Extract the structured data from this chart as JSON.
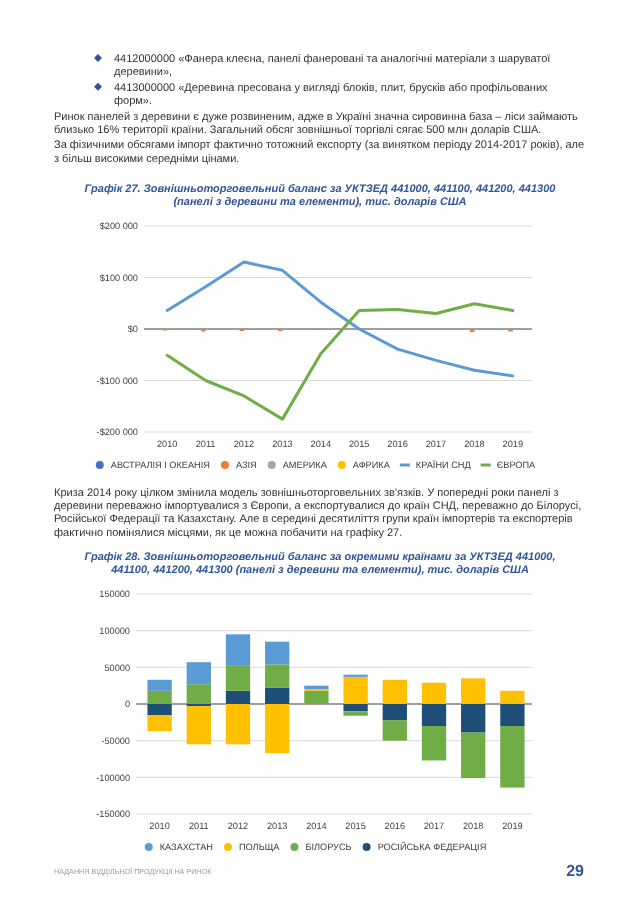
{
  "chart_data": [
    {
      "type": "line",
      "title": "Графік 27.  Зовнішньоторговельний баланс за УКТЗЕД 441000, 441100, 441200, 441300 (панелі з деревини та елементи), тис. доларів США",
      "annotations": [
        "4412000000 «Фанера клеєна, панелі фанеровані та аналогічні матеріали з шаруватої деревини»,",
        "4413000000 «Деревина пресована у вигляді блоків, плит, брусків або профільованих форм».",
        "Ринок панелей з деревини є дуже розвиненим, адже в Україні значна сировинна база – ліси займають близько 16% території країни. Загальний обсяг зовнішньої торгівлі сягає 500 млн доларів США.",
        "За фізичними обсягами імпорт фактично тотожний експорту (за винятком періоду 2014-2017 років), але з більш високими середніми цінами."
      ],
      "categories": [
        "2010",
        "2011",
        "2012",
        "2013",
        "2014",
        "2015",
        "2016",
        "2017",
        "2018",
        "2019"
      ],
      "series": [
        {
          "name": "АВСТРАЛІЯ І ОКЕАНІЯ",
          "type": "bar",
          "color": "#4472c4",
          "values": [
            0,
            0,
            0,
            0,
            0,
            0,
            0,
            0,
            0,
            0
          ]
        },
        {
          "name": "АЗІЯ",
          "type": "bar",
          "color": "#ed7d31",
          "values": [
            -3000,
            -5000,
            -4000,
            -4000,
            -2000,
            0,
            0,
            0,
            -6000,
            -5000
          ]
        },
        {
          "name": "АМЕРИКА",
          "type": "bar",
          "color": "#a5a5a5",
          "values": [
            0,
            0,
            0,
            0,
            0,
            0,
            0,
            0,
            0,
            0
          ]
        },
        {
          "name": "АФРИКА",
          "type": "bar",
          "color": "#ffc000",
          "values": [
            0,
            0,
            0,
            0,
            0,
            0,
            0,
            0,
            0,
            0
          ]
        },
        {
          "name": "КРАЇНИ СНД",
          "type": "line",
          "color": "#5b9bd5",
          "values": [
            36000,
            82000,
            130000,
            114000,
            52000,
            0,
            -39000,
            -61000,
            -80000,
            -91000
          ]
        },
        {
          "name": "ЄВРОПА",
          "type": "line",
          "color": "#70ad47",
          "values": [
            -51000,
            -100000,
            -130000,
            -175000,
            -48000,
            36000,
            38000,
            30000,
            49000,
            36000
          ]
        }
      ],
      "ylim": [
        -200000,
        200000
      ],
      "yticks": [
        {
          "value": -200000,
          "label": "-$200 000"
        },
        {
          "value": -100000,
          "label": "-$100 000"
        },
        {
          "value": 0,
          "label": "$0"
        },
        {
          "value": 100000,
          "label": "$100 000"
        },
        {
          "value": 200000,
          "label": "$200 000"
        }
      ],
      "grid": "y",
      "legend": "bottom"
    },
    {
      "type": "bar",
      "stacked": true,
      "title": "Графік 28. Зовнішньоторговельний баланс за окремими країнами за УКТЗЕД 441000, 441100, 441200, 441300  (панелі з деревини та елементи),  тис. доларів США",
      "annotations": [
        "Криза 2014 року цілком змінила модель зовнішньоторговельних зв'язків. У попередні роки панелі з деревини переважно імпортувалися з Європи, а експортувалися до країн СНД, переважно до Білорусі, Російської Федерації та Казахстану. Але в середині десятиліття групи країн імпортерів та експортерів фактично помінялися місцями, як це можна побачити на графіку 27.",
        "НАДАННЯ ВІДДІЛЬНОЇ ПРОДУКЦІЇ НА РИНОК",
        "29"
      ],
      "categories": [
        "2010",
        "2011",
        "2012",
        "2013",
        "2014",
        "2015",
        "2016",
        "2017",
        "2018",
        "2019"
      ],
      "series": [
        {
          "name": "РОСІЙСЬКА ФЕДЕРАЦІЯ",
          "color": "#1f4e79",
          "values": [
            -15000,
            -3000,
            18000,
            22000,
            0,
            -10000,
            -22000,
            -30000,
            -39000,
            -30000
          ]
        },
        {
          "name": "БІЛОРУСЬ",
          "color": "#70ad47",
          "values": [
            18000,
            27000,
            34000,
            32000,
            18000,
            -6000,
            -28000,
            -47000,
            -62000,
            -84000
          ]
        },
        {
          "name": "ПОЛЬЩА",
          "color": "#ffc000",
          "values": [
            -22000,
            -52000,
            -55000,
            -67000,
            2000,
            37000,
            33000,
            29000,
            35000,
            18000
          ]
        },
        {
          "name": "КАЗАХСТАН",
          "color": "#5b9bd5",
          "values": [
            15000,
            30000,
            43000,
            31000,
            5000,
            3000,
            0,
            0,
            0,
            0
          ]
        }
      ],
      "ylim": [
        -150000,
        150000
      ],
      "yticks": [
        -150000,
        -100000,
        -50000,
        0,
        50000,
        100000,
        150000
      ],
      "grid": "y",
      "legend": "bottom"
    }
  ]
}
